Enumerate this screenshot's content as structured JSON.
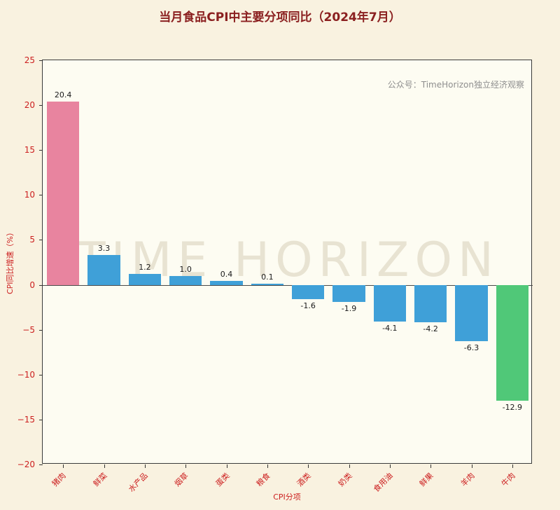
{
  "title": "当月食品CPI中主要分项同比（2024年7月）",
  "annotation": "公众号：TimeHorizon独立经济观察",
  "watermark": "TIME HORIZON",
  "chart_data": {
    "type": "bar",
    "title": "当月食品CPI中主要分项同比（2024年7月）",
    "xlabel": "CPI分项",
    "ylabel": "CPI同比增速（%）",
    "categories": [
      "猪肉",
      "鲜菜",
      "水产品",
      "烟草",
      "蛋类",
      "粮食",
      "酒类",
      "奶类",
      "食用油",
      "鲜果",
      "羊肉",
      "牛肉"
    ],
    "values": [
      20.4,
      3.3,
      1.2,
      1.0,
      0.4,
      0.1,
      -1.6,
      -1.9,
      -4.1,
      -4.2,
      -6.3,
      -12.9
    ],
    "value_labels": [
      "20.4",
      "3.3",
      "1.2",
      "1.0",
      "0.4",
      "0.1",
      "-1.6",
      "-1.9",
      "-4.1",
      "-4.2",
      "-6.3",
      "-12.9"
    ],
    "bar_colors": [
      "#e8849f",
      "#3fa0d8",
      "#3fa0d8",
      "#3fa0d8",
      "#3fa0d8",
      "#3fa0d8",
      "#3fa0d8",
      "#3fa0d8",
      "#3fa0d8",
      "#3fa0d8",
      "#3fa0d8",
      "#50c878"
    ],
    "ylim": [
      -20,
      25
    ],
    "yticks": [
      25,
      20,
      15,
      10,
      5,
      0,
      -5,
      -10,
      -15,
      -20
    ],
    "ytick_labels": [
      "25",
      "20",
      "15",
      "10",
      "5",
      "0",
      "−5",
      "−10",
      "−15",
      "−20"
    ],
    "grid": false,
    "legend": null
  },
  "colors": {
    "background": "#f9f2e0",
    "plot_background": "#fdfcf2",
    "axis_text": "#cc1f1f",
    "title_text": "#8b2020",
    "annotation_text": "#8e8e8e",
    "watermark_text": "#e8e3d2",
    "zero_line": "#4a4a4a"
  }
}
